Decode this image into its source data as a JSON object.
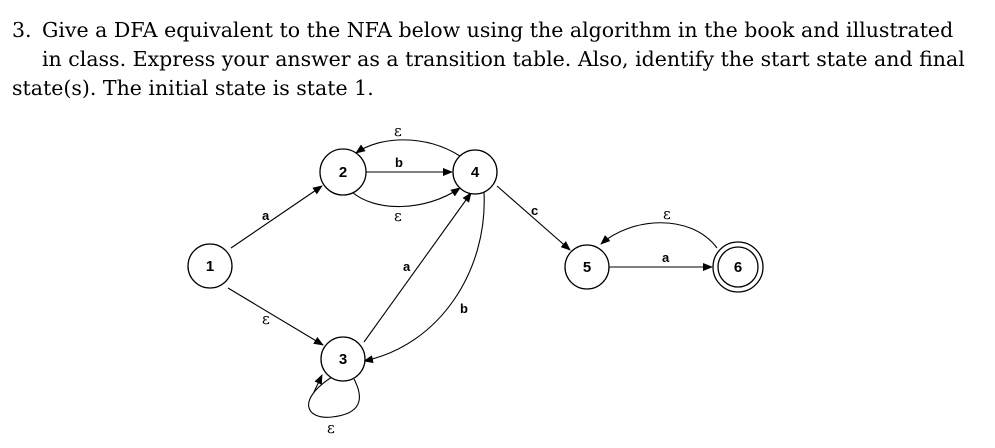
{
  "problem": {
    "number": "3.",
    "line1": "Give a DFA equivalent to the NFA below using the algorithm in the book and illustrated",
    "line2": "in class. Express your answer as a transition table. Also, identify the start state and final",
    "line3": "state(s). The initial state is state 1."
  },
  "nfa": {
    "states": [
      {
        "id": "1",
        "label": "1",
        "accepting": false
      },
      {
        "id": "2",
        "label": "2",
        "accepting": false
      },
      {
        "id": "3",
        "label": "3",
        "accepting": false
      },
      {
        "id": "4",
        "label": "4",
        "accepting": false
      },
      {
        "id": "5",
        "label": "5",
        "accepting": false
      },
      {
        "id": "6",
        "label": "6",
        "accepting": true
      }
    ],
    "transitions": [
      {
        "from": "1",
        "to": "2",
        "label": "a"
      },
      {
        "from": "1",
        "to": "3",
        "label": "ε"
      },
      {
        "from": "2",
        "to": "4",
        "label": "b"
      },
      {
        "from": "2",
        "to": "4",
        "label": "ε"
      },
      {
        "from": "4",
        "to": "2",
        "label": "ε"
      },
      {
        "from": "3",
        "to": "4",
        "label": "a"
      },
      {
        "from": "4",
        "to": "3",
        "label": "b"
      },
      {
        "from": "3",
        "to": "3",
        "label": "ε"
      },
      {
        "from": "4",
        "to": "5",
        "label": "c"
      },
      {
        "from": "5",
        "to": "6",
        "label": "a"
      },
      {
        "from": "6",
        "to": "5",
        "label": "ε"
      }
    ]
  }
}
